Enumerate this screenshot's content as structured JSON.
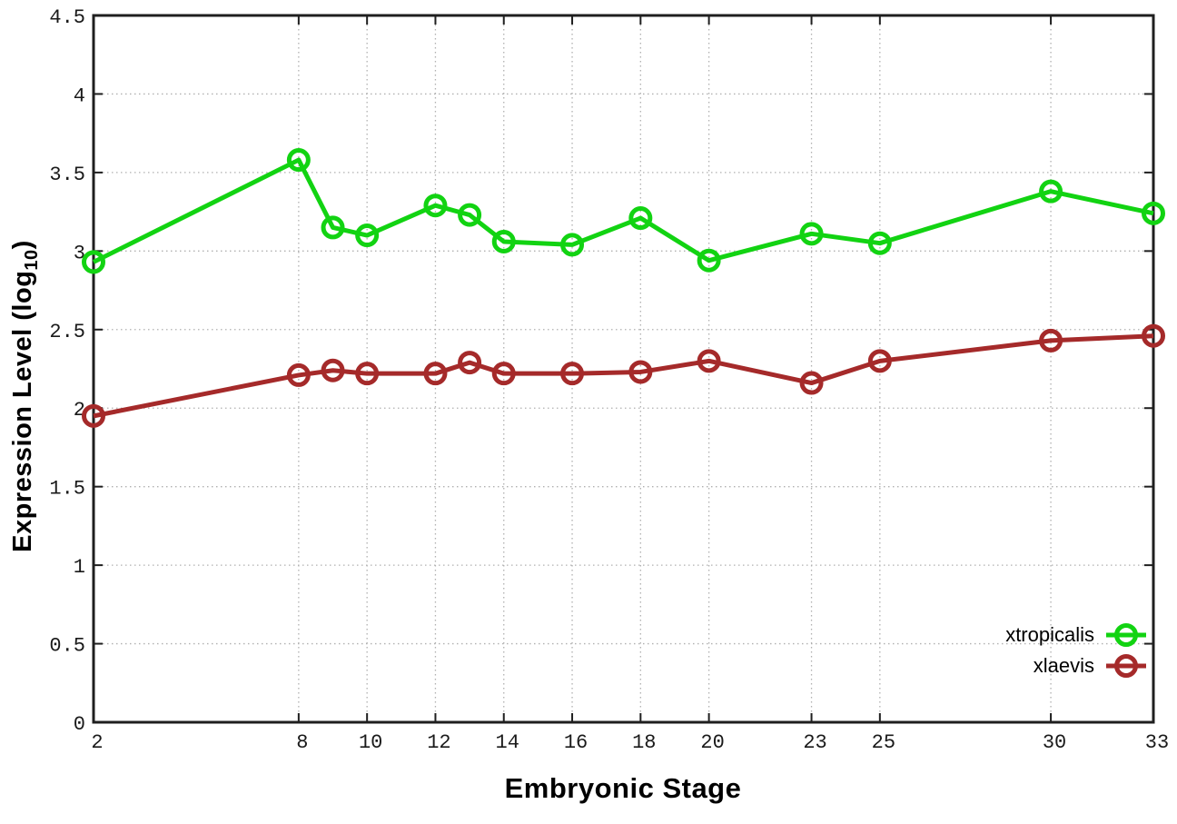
{
  "chart_data": {
    "type": "line",
    "title": "",
    "xlabel": "Embryonic Stage",
    "ylabel": "Expression Level (log10)",
    "ylabel_parts": {
      "prefix": "Expression Level (log",
      "subscript": "10",
      "suffix": ")"
    },
    "x": [
      2,
      8,
      9,
      10,
      12,
      13,
      14,
      16,
      18,
      20,
      23,
      25,
      30,
      33
    ],
    "series": [
      {
        "name": "xtropicalis",
        "color": "#12d312",
        "values": [
          2.93,
          3.58,
          3.15,
          3.1,
          3.29,
          3.23,
          3.06,
          3.04,
          3.21,
          2.94,
          3.11,
          3.05,
          3.38,
          3.24
        ]
      },
      {
        "name": "xlaevis",
        "color": "#a52a2a",
        "values": [
          1.95,
          2.21,
          2.24,
          2.22,
          2.22,
          2.29,
          2.22,
          2.22,
          2.23,
          2.3,
          2.16,
          2.3,
          2.43,
          2.46
        ]
      }
    ],
    "xlim": [
      2,
      33
    ],
    "ylim": [
      0,
      4.5
    ],
    "xticks": [
      2,
      8,
      10,
      12,
      14,
      16,
      18,
      20,
      23,
      25,
      30,
      33
    ],
    "xtick_labels": [
      "2",
      "8",
      "10",
      "12",
      "14",
      "16",
      "18",
      "20",
      "23",
      "25",
      "30",
      "33"
    ],
    "yticks": [
      0,
      0.5,
      1,
      1.5,
      2,
      2.5,
      3,
      3.5,
      4,
      4.5
    ],
    "ytick_labels": [
      "0",
      "0.5",
      "1",
      "1.5",
      "2",
      "2.5",
      "3",
      "3.5",
      "4",
      "4.5"
    ],
    "grid": true,
    "legend_position": "bottom-right",
    "marker": "open-circle",
    "style": {
      "grid_color": "#b0b0b0",
      "axis_color": "#1f1f1f",
      "line_width": 5,
      "marker_radius": 10.5
    }
  }
}
